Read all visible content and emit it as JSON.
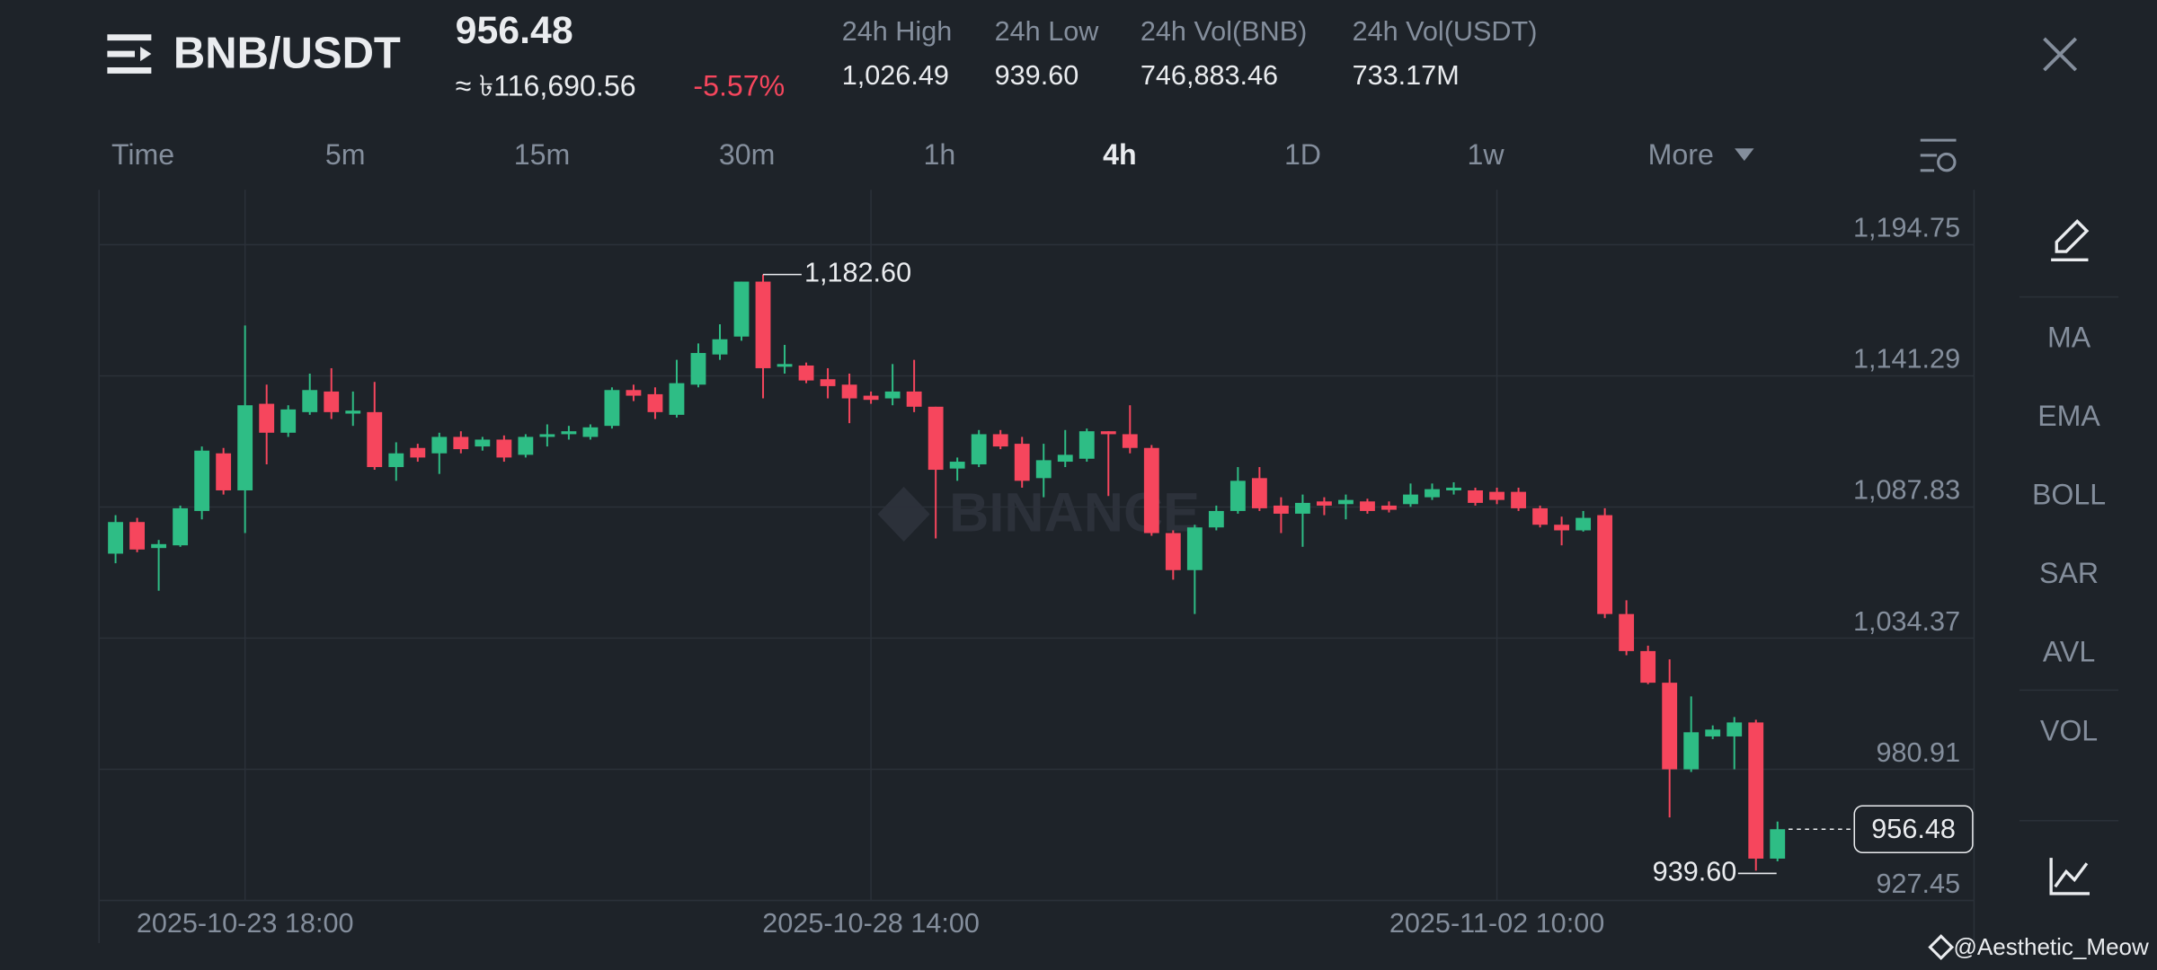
{
  "header": {
    "symbol": "BNB/USDT",
    "price": "956.48",
    "fiat": "≈ ৳116,690.56",
    "change": "-5.57%",
    "stats": [
      {
        "label": "24h High",
        "value": "1,026.49"
      },
      {
        "label": "24h Low",
        "value": "939.60"
      },
      {
        "label": "24h Vol(BNB)",
        "value": "746,883.46"
      },
      {
        "label": "24h Vol(USDT)",
        "value": "733.17M"
      }
    ]
  },
  "timeframes": [
    "Time",
    "5m",
    "15m",
    "30m",
    "1h",
    "4h",
    "1D",
    "1w",
    "More"
  ],
  "active_timeframe": 5,
  "indicators": [
    "MA",
    "EMA",
    "BOLL",
    "SAR",
    "AVL",
    "VOL"
  ],
  "credit": "@Aesthetic_Meow",
  "chart_data": {
    "type": "candlestick",
    "watermark": "BINANCE",
    "up_color": "#2ebd85",
    "down_color": "#f6465d",
    "grid": true,
    "categories": [
      null,
      null,
      null,
      null,
      null,
      null,
      "2025-10-23 18:00",
      null,
      null,
      null,
      null,
      null,
      null,
      null,
      null,
      null,
      null,
      null,
      null,
      null,
      null,
      null,
      null,
      null,
      null,
      null,
      null,
      null,
      null,
      null,
      null,
      null,
      null,
      null,
      null,
      "2025-10-28 14:00",
      null,
      null,
      null,
      null,
      null,
      null,
      null,
      null,
      null,
      null,
      null,
      null,
      null,
      null,
      null,
      null,
      null,
      null,
      null,
      null,
      null,
      null,
      null,
      null,
      null,
      null,
      null,
      null,
      "2025-11-02 10:00",
      null,
      null,
      null,
      null,
      null,
      null,
      null,
      null,
      null,
      null,
      null,
      null,
      null
    ],
    "open": [
      1068.8,
      1081.7,
      1071.1,
      1072.2,
      1086.2,
      1109.7,
      1094.6,
      1129.9,
      1118.1,
      1126.5,
      1134.9,
      1125.9,
      1126.5,
      1104.1,
      1111.9,
      1109.7,
      1116.4,
      1112.5,
      1115.3,
      1109.1,
      1116.4,
      1117.5,
      1116.4,
      1120.9,
      1135.5,
      1133.8,
      1125.4,
      1137.7,
      1150.0,
      1157.3,
      1179.7,
      1145.0,
      1145.5,
      1139.9,
      1137.7,
      1133.2,
      1132.1,
      1134.9,
      1128.7,
      1103.5,
      1105.2,
      1117.5,
      1113.6,
      1099.6,
      1106.3,
      1107.5,
      1118.7,
      1117.5,
      1111.9,
      1077.2,
      1062.1,
      1079.5,
      1086.2,
      1099.6,
      1088.4,
      1085.1,
      1090.1,
      1089.0,
      1090.1,
      1088.4,
      1089.0,
      1091.8,
      1094.6,
      1094.6,
      1094.0,
      1094.0,
      1087.3,
      1080.6,
      1078.3,
      1084.5,
      1044.2,
      1029.1,
      1016.2,
      980.9,
      994.3,
      994.3,
      1000.0,
      944.5
    ],
    "high": [
      1084.5,
      1083.4,
      1074.4,
      1088.4,
      1112.5,
      1111.9,
      1161.8,
      1137.7,
      1129.3,
      1142.2,
      1144.4,
      1134.9,
      1138.8,
      1114.2,
      1113.6,
      1118.1,
      1118.7,
      1116.4,
      1117.0,
      1117.5,
      1121.5,
      1120.9,
      1121.5,
      1136.6,
      1137.7,
      1136.6,
      1147.8,
      1154.5,
      1162.3,
      1179.7,
      1182.6,
      1153.9,
      1146.7,
      1144.4,
      1142.2,
      1134.9,
      1146.1,
      1147.8,
      1128.7,
      1108.0,
      1119.2,
      1119.2,
      1116.4,
      1113.6,
      1119.2,
      1119.8,
      1118.7,
      1129.3,
      1113.1,
      1078.3,
      1080.6,
      1088.4,
      1104.1,
      1104.1,
      1091.8,
      1092.9,
      1091.8,
      1092.9,
      1091.2,
      1090.1,
      1097.4,
      1097.4,
      1097.9,
      1095.7,
      1095.7,
      1095.7,
      1088.4,
      1083.9,
      1086.2,
      1087.3,
      1049.8,
      1031.3,
      1025.7,
      1010.6,
      998.8,
      1002.2,
      1001.1,
      959.6
    ],
    "low": [
      1064.9,
      1069.4,
      1053.7,
      1071.6,
      1082.8,
      1092.9,
      1077.2,
      1105.2,
      1116.4,
      1125.4,
      1123.7,
      1120.9,
      1103.0,
      1098.5,
      1106.3,
      1101.3,
      1109.7,
      1110.8,
      1106.3,
      1108.0,
      1112.5,
      1115.3,
      1115.3,
      1119.8,
      1131.0,
      1123.7,
      1124.3,
      1136.6,
      1147.8,
      1155.6,
      1132.1,
      1142.2,
      1138.3,
      1132.1,
      1122.0,
      1129.9,
      1129.3,
      1126.5,
      1075.0,
      1098.5,
      1104.1,
      1111.4,
      1095.7,
      1091.8,
      1104.1,
      1106.3,
      1092.3,
      1109.7,
      1076.1,
      1058.2,
      1044.2,
      1078.3,
      1085.1,
      1086.2,
      1077.2,
      1071.6,
      1084.5,
      1082.8,
      1085.1,
      1085.6,
      1087.9,
      1090.7,
      1092.9,
      1088.4,
      1089.0,
      1086.2,
      1079.5,
      1072.2,
      1077.8,
      1042.5,
      1027.4,
      1015.6,
      961.3,
      979.8,
      993.2,
      980.9,
      939.6,
      943.4
    ],
    "close": [
      1081.7,
      1070.5,
      1072.7,
      1087.3,
      1110.8,
      1094.6,
      1129.3,
      1118.1,
      1127.6,
      1135.5,
      1126.5,
      1127.1,
      1104.1,
      1109.7,
      1108.0,
      1116.4,
      1111.4,
      1115.3,
      1108.0,
      1116.4,
      1117.5,
      1118.7,
      1120.3,
      1135.5,
      1133.2,
      1126.5,
      1138.3,
      1150.6,
      1156.2,
      1179.7,
      1144.4,
      1146.1,
      1139.4,
      1137.1,
      1132.1,
      1131.5,
      1134.9,
      1128.7,
      1103.0,
      1106.3,
      1117.5,
      1112.5,
      1098.5,
      1106.9,
      1109.1,
      1118.7,
      1117.5,
      1111.9,
      1077.2,
      1062.1,
      1079.5,
      1086.2,
      1098.5,
      1087.3,
      1085.1,
      1089.5,
      1088.4,
      1090.7,
      1086.2,
      1086.7,
      1092.9,
      1095.1,
      1095.7,
      1089.5,
      1090.7,
      1087.3,
      1080.6,
      1078.3,
      1083.4,
      1044.2,
      1029.1,
      1016.2,
      980.9,
      996.0,
      997.1,
      1000.0,
      944.5,
      956.48
    ],
    "ylim": [
      927.45,
      1217.16
    ],
    "yticks": [
      927.45,
      980.91,
      {
        "value": 1034.37,
        "label": "1,034.37"
      },
      {
        "value": 1087.83,
        "label": "1,087.83"
      },
      {
        "value": 1141.29,
        "label": "1,141.29"
      },
      {
        "value": 1194.75,
        "label": "1,194.75"
      }
    ],
    "high_marker": {
      "value": 1182.6,
      "label": "1,182.60"
    },
    "low_marker": {
      "value": 939.6,
      "label": "939.60"
    },
    "last_price": {
      "value": 956.48,
      "label": "956.48"
    }
  }
}
